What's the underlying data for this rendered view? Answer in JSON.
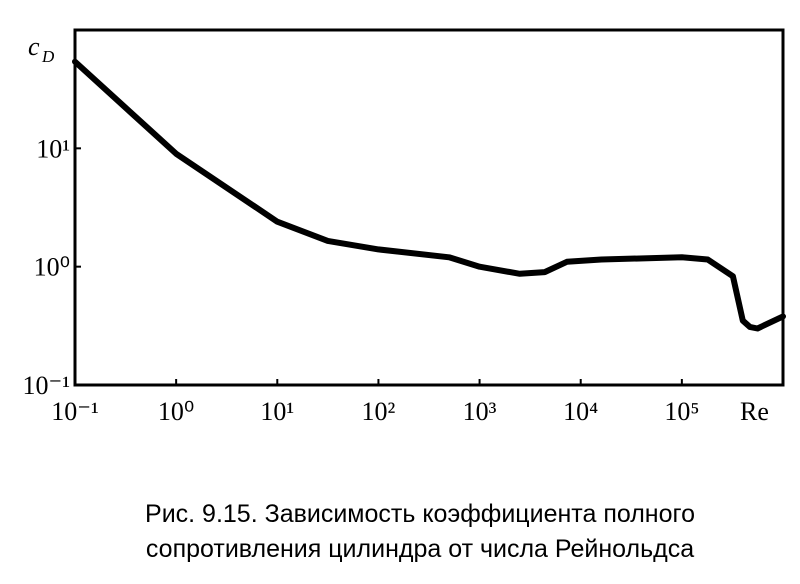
{
  "chart_data": {
    "type": "line",
    "ylabel": "c",
    "ylabel_subscript": "D",
    "xlabel": "Re",
    "caption": [
      "Рис. 9.15. Зависимость коэффициента полного",
      "сопротивления цилиндра от числа Рейнольдса"
    ],
    "x": [
      0.1,
      1,
      10,
      31.6,
      100,
      500,
      1000,
      2500,
      4400,
      7300,
      16000,
      100000,
      180000,
      320000,
      400000,
      470000,
      560000,
      1000000
    ],
    "series": [
      {
        "name": "cD",
        "color": "#000000",
        "values": [
          54,
          9,
          2.4,
          1.65,
          1.4,
          1.2,
          1.0,
          0.87,
          0.9,
          1.1,
          1.15,
          1.2,
          1.15,
          0.83,
          0.35,
          0.31,
          0.3,
          0.38
        ]
      }
    ],
    "xscale": "log",
    "yscale": "log",
    "xlim": [
      0.1,
      1000000
    ],
    "ylim": [
      0.1,
      100
    ],
    "xticks": [
      {
        "value": 0.1,
        "label": "10⁻¹"
      },
      {
        "value": 1,
        "label": "10⁰"
      },
      {
        "value": 10,
        "label": "10¹"
      },
      {
        "value": 100,
        "label": "10²"
      },
      {
        "value": 1000,
        "label": "10³"
      },
      {
        "value": 10000,
        "label": "10⁴"
      },
      {
        "value": 100000,
        "label": "10⁵"
      }
    ],
    "yticks": [
      {
        "value": 0.1,
        "label": "10⁻¹"
      },
      {
        "value": 1,
        "label": "10⁰"
      },
      {
        "value": 10,
        "label": "10¹"
      }
    ],
    "grid": false
  }
}
